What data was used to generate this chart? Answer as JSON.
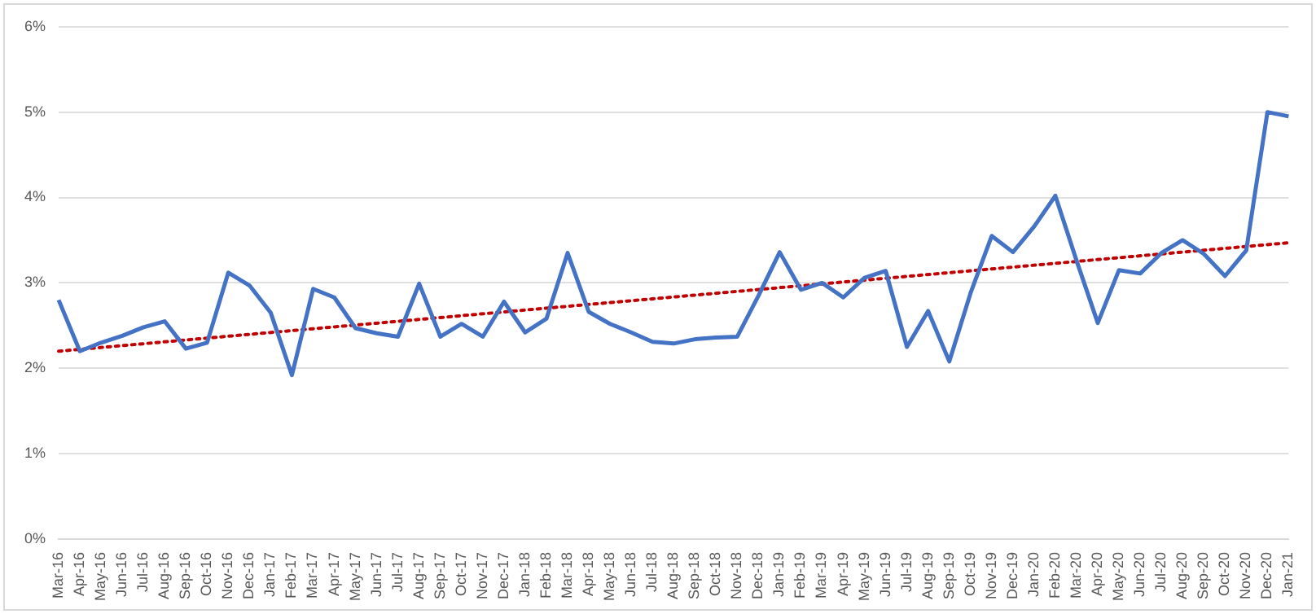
{
  "chart_data": {
    "type": "line",
    "categories": [
      "Mar-16",
      "Apr-16",
      "May-16",
      "Jun-16",
      "Jul-16",
      "Aug-16",
      "Sep-16",
      "Oct-16",
      "Nov-16",
      "Dec-16",
      "Jan-17",
      "Feb-17",
      "Mar-17",
      "Apr-17",
      "May-17",
      "Jun-17",
      "Jul-17",
      "Aug-17",
      "Sep-17",
      "Oct-17",
      "Nov-17",
      "Dec-17",
      "Jan-18",
      "Feb-18",
      "Mar-18",
      "Apr-18",
      "May-18",
      "Jun-18",
      "Jul-18",
      "Aug-18",
      "Sep-18",
      "Oct-18",
      "Nov-18",
      "Dec-18",
      "Jan-19",
      "Feb-19",
      "Mar-19",
      "Apr-19",
      "May-19",
      "Jun-19",
      "Jul-19",
      "Aug-19",
      "Sep-19",
      "Oct-19",
      "Nov-19",
      "Dec-19",
      "Jan-20",
      "Feb-20",
      "Mar-20",
      "Apr-20",
      "May-20",
      "Jun-20",
      "Jul-20",
      "Aug-20",
      "Sep-20",
      "Oct-20",
      "Nov-20",
      "Dec-20",
      "Jan-21"
    ],
    "series": [
      {
        "color": "#4472c4",
        "values": [
          2.8,
          2.2,
          2.3,
          2.38,
          2.48,
          2.55,
          2.23,
          2.3,
          3.12,
          2.97,
          2.65,
          1.92,
          2.93,
          2.83,
          2.47,
          2.41,
          2.37,
          2.99,
          2.37,
          2.52,
          2.37,
          2.78,
          2.42,
          2.58,
          3.35,
          2.66,
          2.52,
          2.42,
          2.31,
          2.29,
          2.34,
          2.36,
          2.37,
          2.85,
          3.36,
          2.92,
          3.0,
          2.83,
          3.06,
          3.14,
          2.25,
          2.67,
          2.08,
          2.88,
          3.55,
          3.36,
          3.66,
          4.02,
          3.26,
          2.53,
          3.15,
          3.11,
          3.35,
          3.5,
          3.34,
          3.08,
          3.38,
          5.0,
          4.95
        ]
      },
      {
        "type": "line",
        "color": "#c00000",
        "line_style": "dotted",
        "x": [
          "Mar-16",
          "Jan-21"
        ],
        "values": [
          2.2,
          3.47
        ]
      }
    ],
    "ylim": [
      0,
      6
    ],
    "yticks": [
      {
        "value": 0,
        "label": "0%"
      },
      {
        "value": 1,
        "label": "1%"
      },
      {
        "value": 2,
        "label": "2%"
      },
      {
        "value": 3,
        "label": "3%"
      },
      {
        "value": 4,
        "label": "4%"
      },
      {
        "value": 5,
        "label": "5%"
      },
      {
        "value": 6,
        "label": "6%"
      }
    ],
    "grid": "y",
    "legend": false,
    "marker": "none",
    "line_style": "solid"
  }
}
